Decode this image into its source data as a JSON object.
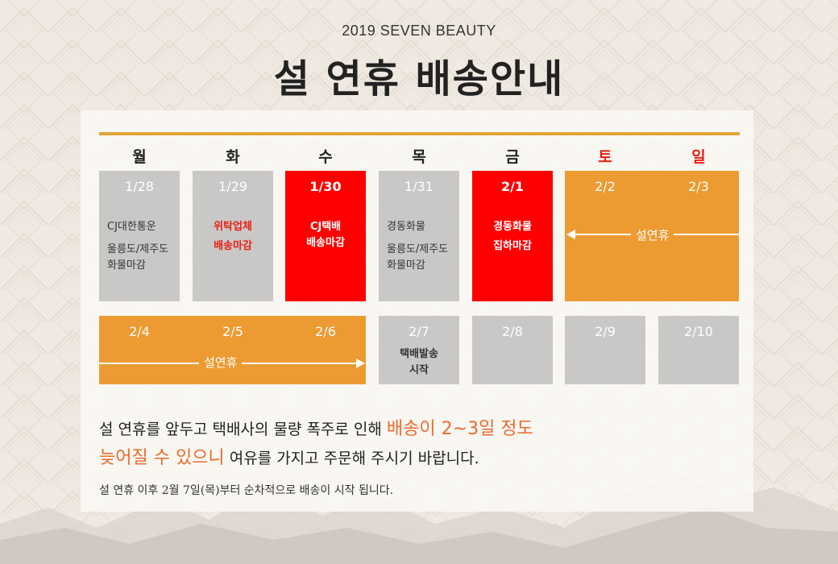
{
  "header": {
    "subtitle": "2019 SEVEN BEAUTY",
    "title": "설 연휴 배송안내"
  },
  "weekdays": [
    "월",
    "화",
    "수",
    "목",
    "금",
    "토",
    "일"
  ],
  "week1": {
    "mon": {
      "date": "1/28",
      "line1": "CJ대한통운",
      "line2": "울릉도/제주도",
      "line3": "화물마감"
    },
    "tue": {
      "date": "1/29",
      "line1": "위탁업체",
      "line2": "배송마감"
    },
    "wed": {
      "date": "1/30",
      "line1": "CJ택배",
      "line2": "배송마감"
    },
    "thu": {
      "date": "1/31",
      "line1": "경동화물",
      "line2": "울릉도/제주도",
      "line3": "화물마감"
    },
    "fri": {
      "date": "2/1",
      "line1": "경동화물",
      "line2": "집하마감"
    },
    "sat": {
      "date": "2/2"
    },
    "sun": {
      "date": "2/3"
    },
    "holiday_label": "설연휴"
  },
  "week2": {
    "mon": {
      "date": "2/4"
    },
    "tue": {
      "date": "2/5"
    },
    "wed": {
      "date": "2/6"
    },
    "holiday_label": "설연휴",
    "thu": {
      "date": "2/7",
      "line1": "택배발송",
      "line2": "시작"
    },
    "fri": {
      "date": "2/8"
    },
    "sat": {
      "date": "2/9"
    },
    "sun": {
      "date": "2/10"
    }
  },
  "message": {
    "line1_a": "설 연휴를 앞두고 택배사의 물량 폭주로 인해 ",
    "line1_hl": "배송이 2~3일 정도",
    "line2_hl": "늦어질 수 있으니",
    "line2_b": " 여유를 가지고 주문해 주시기 바랍니다.",
    "line3": "설 연휴 이후 2월 7일(목)부터 순차적으로 배송이 시작 됩니다."
  },
  "colors": {
    "accent_orange": "#ec9b32",
    "accent_red": "#ff0000",
    "gray_cell": "#c9c8c6",
    "gold_line": "#e0a537",
    "highlight_text": "#ec6a2b"
  }
}
